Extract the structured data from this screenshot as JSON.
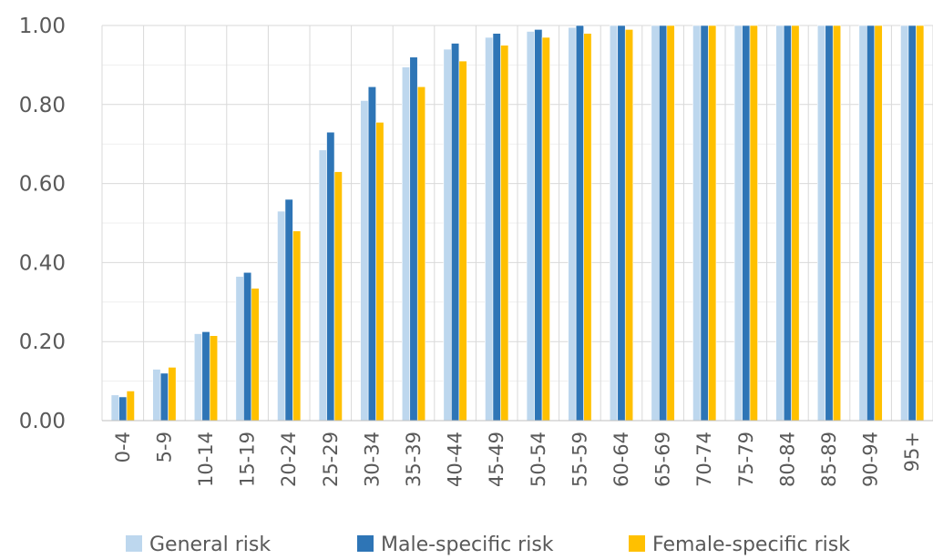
{
  "chart_data": {
    "type": "bar",
    "categories": [
      "0-4",
      "5-9",
      "10-14",
      "15-19",
      "20-24",
      "25-29",
      "30-34",
      "35-39",
      "40-44",
      "45-49",
      "50-54",
      "55-59",
      "60-64",
      "65-69",
      "70-74",
      "75-79",
      "80-84",
      "85-89",
      "90-94",
      "95+"
    ],
    "series": [
      {
        "name": "General risk",
        "color": "#bdd7ee",
        "values": [
          0.065,
          0.13,
          0.22,
          0.365,
          0.53,
          0.685,
          0.81,
          0.895,
          0.94,
          0.97,
          0.985,
          0.995,
          1.0,
          1.0,
          1.0,
          1.0,
          1.0,
          1.0,
          1.0,
          1.0
        ]
      },
      {
        "name": "Male-specific risk",
        "color": "#2e75b6",
        "values": [
          0.06,
          0.12,
          0.225,
          0.375,
          0.56,
          0.73,
          0.845,
          0.92,
          0.955,
          0.98,
          0.99,
          1.0,
          1.0,
          1.0,
          1.0,
          1.0,
          1.0,
          1.0,
          1.0,
          1.0
        ]
      },
      {
        "name": "Female-specific risk",
        "color": "#ffc000",
        "values": [
          0.075,
          0.135,
          0.215,
          0.335,
          0.48,
          0.63,
          0.755,
          0.845,
          0.91,
          0.95,
          0.97,
          0.98,
          0.99,
          1.0,
          1.0,
          1.0,
          1.0,
          1.0,
          1.0,
          1.0
        ]
      }
    ],
    "ylim": [
      0,
      1.0
    ],
    "yticks": [
      "0.00",
      "0.20",
      "0.40",
      "0.60",
      "0.80",
      "1.00"
    ],
    "grid": true,
    "legend_position": "bottom",
    "title": "",
    "xlabel": "",
    "ylabel": ""
  }
}
